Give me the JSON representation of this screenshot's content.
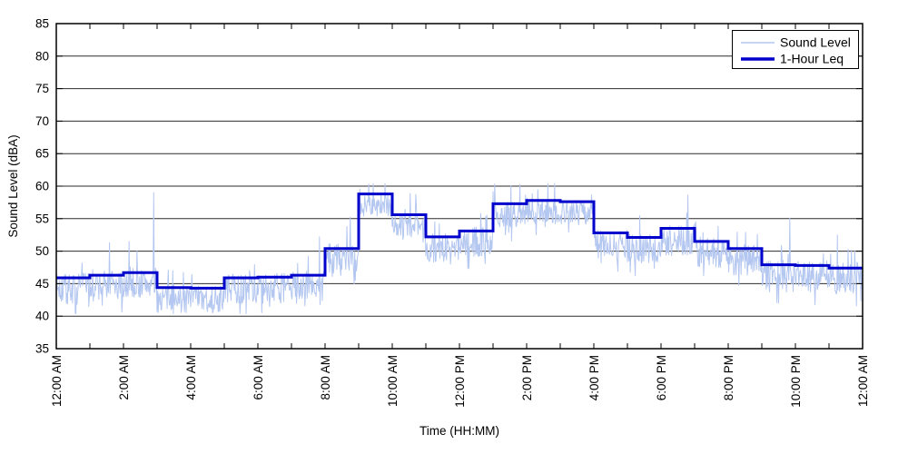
{
  "chart_data": {
    "type": "line",
    "title": "",
    "xlabel": "Time (HH:MM)",
    "ylabel": "Sound Level (dBA)",
    "ylim": [
      35,
      85
    ],
    "ytick_interval": 5,
    "yticks": [
      35,
      40,
      45,
      50,
      55,
      60,
      65,
      70,
      75,
      80,
      85
    ],
    "x_range_hours": [
      0,
      24
    ],
    "xtick_interval_hours": 1,
    "xtick_label_interval_hours": 2,
    "xtick_labels": [
      "12:00 AM",
      "2:00 AM",
      "4:00 AM",
      "6:00 AM",
      "8:00 AM",
      "10:00 AM",
      "12:00 PM",
      "2:00 PM",
      "4:00 PM",
      "6:00 PM",
      "8:00 PM",
      "10:00 PM",
      "12:00 AM"
    ],
    "grid": "horizontal-solid",
    "axis_color": "#000000",
    "grid_color": "#2B2B2B",
    "background_color": "#FFFFFF",
    "legend": {
      "position": "top-right",
      "entries": [
        {
          "label": "Sound Level"
        },
        {
          "label": "1-Hour Leq"
        }
      ]
    },
    "series": [
      {
        "name": "Sound Level",
        "type": "noisy_minute_samples",
        "color": "#B4C7F0",
        "stroke_width": 1,
        "approximation": "procedural-noise-around-hourly-leq",
        "seed": 7,
        "center_offset": 1.7,
        "amplitude_by_hour": [
          2.4,
          2.4,
          2.4,
          2.2,
          2.2,
          2.3,
          2.3,
          2.3,
          2.5,
          1.8,
          1.8,
          2.3,
          2.3,
          1.9,
          1.9,
          1.9,
          2.2,
          2.3,
          2.4,
          2.4,
          2.5,
          2.5,
          2.5,
          2.5
        ],
        "spike_probability": 0.05,
        "spike_max": 3.2,
        "dip_probability": 0.05,
        "dip_extra": 3.5,
        "clamp": [
          40.4,
          60.4
        ],
        "notable_events": [
          [
            95,
            51.3
          ],
          [
            130,
            51.5
          ],
          [
            174,
            59.0
          ],
          [
            280,
            40.6
          ],
          [
            470,
            52.2
          ],
          [
            525,
            55.2
          ],
          [
            558,
            60.3
          ],
          [
            735,
            47.3
          ],
          [
            890,
            60.4
          ],
          [
            1128,
            58.6
          ],
          [
            1252,
            52.6
          ],
          [
            1290,
            42.0
          ],
          [
            1310,
            55.1
          ],
          [
            1395,
            52.5
          ]
        ]
      },
      {
        "name": "1-Hour Leq",
        "type": "step_hourly",
        "color": "#0000CC",
        "stroke_width": 3,
        "hours": [
          0,
          1,
          2,
          3,
          4,
          5,
          6,
          7,
          8,
          9,
          10,
          11,
          12,
          13,
          14,
          15,
          16,
          17,
          18,
          19,
          20,
          21,
          22,
          23
        ],
        "values": [
          45.9,
          46.3,
          46.7,
          44.4,
          44.3,
          45.9,
          46.0,
          46.3,
          50.4,
          58.8,
          55.6,
          52.2,
          53.1,
          57.3,
          57.8,
          57.6,
          52.8,
          52.1,
          53.5,
          51.5,
          50.4,
          47.9,
          47.8,
          47.4
        ]
      }
    ]
  }
}
